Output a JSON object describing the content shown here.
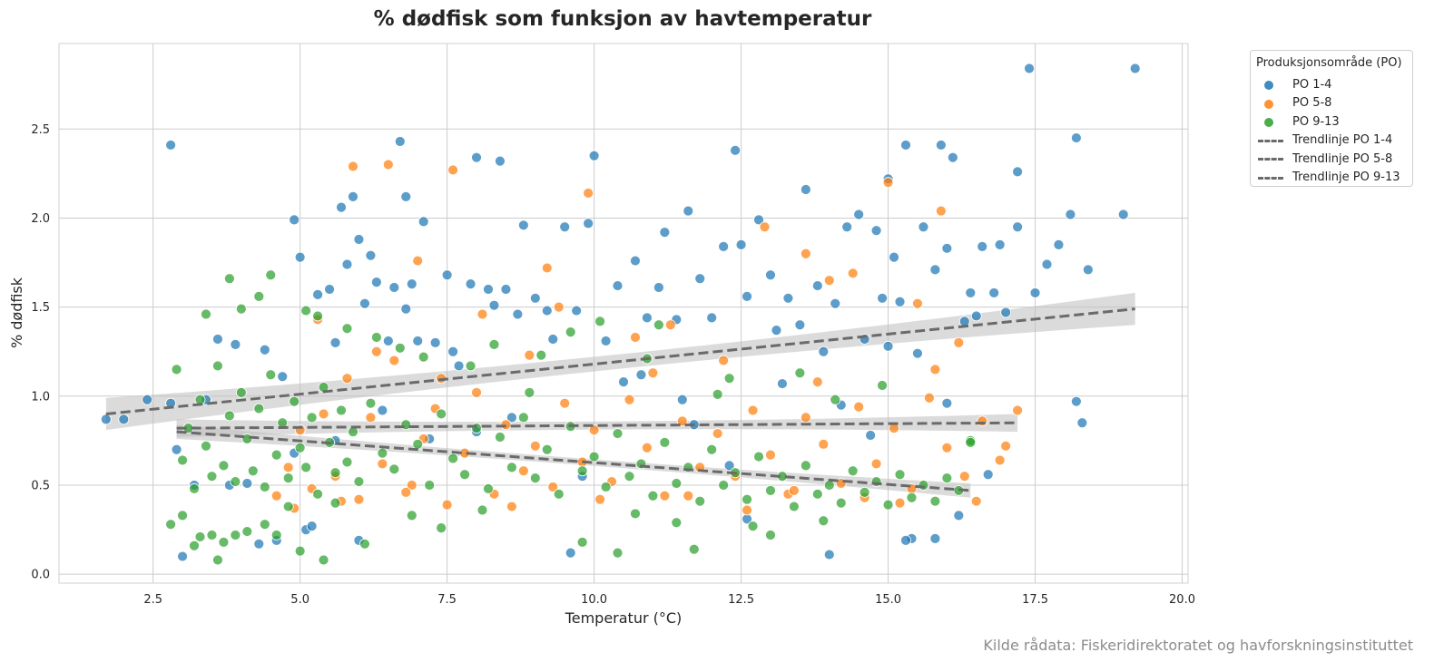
{
  "chart_data": {
    "type": "scatter",
    "title": "% dødfisk som funksjon av havtemperatur",
    "xlabel": "Temperatur (°C)",
    "ylabel": "% dødfisk",
    "xlim": [
      0.9,
      20.1
    ],
    "ylim": [
      -0.05,
      2.98
    ],
    "xticks": [
      2.5,
      5.0,
      7.5,
      10.0,
      12.5,
      15.0,
      17.5,
      20.0
    ],
    "xtick_labels": [
      "2.5",
      "5.0",
      "7.5",
      "10.0",
      "12.5",
      "15.0",
      "17.5",
      "20.0"
    ],
    "yticks": [
      0.0,
      0.5,
      1.0,
      1.5,
      2.0,
      2.5
    ],
    "ytick_labels": [
      "0.0",
      "0.5",
      "1.0",
      "1.5",
      "2.0",
      "2.5"
    ],
    "grid": true,
    "legend_title": "Produksjonsområde (PO)",
    "legend_position": "outside top-right",
    "series": [
      {
        "name": "PO 1-4",
        "color": "#1f77b4",
        "x": [
          1.7,
          2.0,
          2.4,
          2.8,
          2.9,
          3.2,
          3.4,
          3.6,
          3.8,
          3.9,
          4.1,
          4.4,
          4.6,
          4.7,
          4.9,
          5.0,
          5.1,
          5.3,
          5.5,
          5.6,
          5.7,
          5.8,
          5.9,
          6.0,
          6.1,
          6.2,
          6.3,
          6.5,
          6.6,
          6.7,
          6.8,
          6.9,
          7.0,
          7.1,
          7.3,
          7.5,
          7.6,
          7.7,
          7.9,
          8.0,
          8.2,
          8.3,
          8.4,
          8.5,
          8.7,
          8.8,
          9.0,
          9.2,
          9.3,
          9.5,
          9.7,
          9.9,
          10.0,
          10.2,
          10.4,
          10.5,
          10.7,
          10.9,
          11.1,
          11.2,
          11.4,
          11.6,
          11.8,
          12.0,
          12.2,
          12.4,
          12.5,
          12.6,
          12.8,
          13.0,
          13.1,
          13.3,
          13.5,
          13.6,
          13.8,
          13.9,
          14.1,
          14.3,
          14.5,
          14.6,
          14.8,
          14.9,
          15.0,
          15.1,
          15.2,
          15.3,
          15.5,
          15.6,
          15.8,
          15.9,
          16.0,
          16.1,
          16.3,
          16.4,
          16.5,
          16.6,
          16.8,
          16.9,
          17.0,
          17.2,
          17.4,
          17.5,
          17.7,
          17.9,
          18.1,
          18.2,
          18.3,
          18.4,
          19.0,
          19.2,
          16.2,
          15.4,
          5.2,
          6.0,
          4.3,
          9.6,
          12.6,
          14.0,
          15.8,
          3.0,
          2.8,
          6.8,
          8.0,
          11.7,
          17.2,
          18.2,
          15.3,
          16.0,
          4.9,
          5.6,
          6.4,
          7.2,
          8.6,
          9.8,
          10.8,
          11.5,
          12.3,
          13.2,
          14.2,
          14.7,
          15.0,
          16.7
        ],
        "y": [
          0.87,
          0.87,
          0.98,
          0.96,
          0.7,
          0.5,
          0.98,
          1.32,
          0.5,
          1.29,
          0.51,
          1.26,
          0.19,
          1.11,
          1.99,
          1.78,
          0.25,
          1.57,
          1.6,
          1.3,
          2.06,
          1.74,
          2.12,
          1.88,
          1.52,
          1.79,
          1.64,
          1.31,
          1.61,
          2.43,
          1.49,
          1.63,
          1.31,
          1.98,
          1.3,
          1.68,
          1.25,
          1.17,
          1.63,
          2.34,
          1.6,
          1.51,
          2.32,
          1.6,
          1.46,
          1.96,
          1.55,
          1.48,
          1.32,
          1.95,
          1.48,
          1.97,
          2.35,
          1.31,
          1.62,
          1.08,
          1.76,
          1.44,
          1.61,
          1.92,
          1.43,
          2.04,
          1.66,
          1.44,
          1.84,
          2.38,
          1.85,
          1.56,
          1.99,
          1.68,
          1.37,
          1.55,
          1.4,
          2.16,
          1.62,
          1.25,
          1.52,
          1.95,
          2.02,
          1.32,
          1.93,
          1.55,
          2.22,
          1.78,
          1.53,
          2.41,
          1.24,
          1.95,
          1.71,
          2.41,
          1.83,
          2.34,
          1.42,
          1.58,
          1.45,
          1.84,
          1.58,
          1.85,
          1.47,
          2.26,
          2.84,
          1.58,
          1.74,
          1.85,
          2.02,
          2.45,
          0.85,
          1.71,
          2.02,
          2.84,
          0.33,
          0.2,
          0.27,
          0.19,
          0.17,
          0.12,
          0.31,
          0.11,
          0.2,
          0.1,
          2.41,
          2.12,
          0.8,
          0.84,
          1.95,
          0.97,
          0.19,
          0.96,
          0.68,
          0.75,
          0.92,
          0.76,
          0.88,
          0.55,
          1.12,
          0.98,
          0.61,
          1.07,
          0.95,
          0.78,
          1.28,
          0.56
        ],
        "trend": {
          "x": [
            1.7,
            19.2
          ],
          "y": [
            0.9,
            1.49
          ],
          "ci": 0.09
        }
      },
      {
        "name": "PO 5-8",
        "color": "#ff7f0e",
        "x": [
          4.6,
          4.8,
          5.0,
          5.2,
          5.4,
          5.6,
          5.8,
          6.0,
          6.2,
          6.4,
          6.6,
          6.9,
          7.1,
          7.3,
          7.5,
          7.8,
          8.0,
          8.3,
          8.5,
          8.8,
          9.0,
          9.3,
          9.5,
          9.8,
          10.0,
          10.3,
          10.6,
          10.9,
          11.2,
          11.5,
          11.8,
          12.1,
          12.4,
          12.7,
          13.0,
          13.3,
          13.6,
          13.9,
          14.2,
          14.5,
          14.8,
          15.1,
          15.4,
          15.7,
          16.0,
          16.3,
          16.6,
          16.9,
          17.2,
          5.9,
          6.5,
          7.6,
          9.2,
          9.9,
          13.6,
          14.4,
          15.0,
          15.9,
          5.3,
          6.3,
          7.0,
          8.1,
          9.4,
          10.7,
          11.3,
          12.9,
          14.0,
          15.5,
          16.2,
          4.9,
          5.7,
          6.8,
          8.6,
          10.1,
          11.6,
          12.6,
          13.4,
          14.6,
          15.2,
          16.5,
          7.4,
          8.9,
          11.0,
          12.2,
          13.8,
          15.8,
          17.0
        ],
        "y": [
          0.44,
          0.6,
          0.81,
          0.48,
          0.9,
          0.55,
          1.1,
          0.42,
          0.88,
          0.62,
          1.2,
          0.5,
          0.76,
          0.93,
          0.39,
          0.68,
          1.02,
          0.45,
          0.84,
          0.58,
          0.72,
          0.49,
          0.96,
          0.63,
          0.81,
          0.52,
          0.98,
          0.71,
          0.44,
          0.86,
          0.6,
          0.79,
          0.55,
          0.92,
          0.67,
          0.45,
          0.88,
          0.73,
          0.51,
          0.94,
          0.62,
          0.82,
          0.48,
          0.99,
          0.71,
          0.55,
          0.86,
          0.64,
          0.92,
          2.29,
          2.3,
          2.27,
          1.72,
          2.14,
          1.8,
          1.69,
          2.2,
          2.04,
          1.43,
          1.25,
          1.76,
          1.46,
          1.5,
          1.33,
          1.4,
          1.95,
          1.65,
          1.52,
          1.3,
          0.37,
          0.41,
          0.46,
          0.38,
          0.42,
          0.44,
          0.36,
          0.47,
          0.43,
          0.4,
          0.41,
          1.1,
          1.23,
          1.13,
          1.2,
          1.08,
          1.15,
          0.72
        ],
        "trend": {
          "x": [
            2.9,
            17.2
          ],
          "y": [
            0.82,
            0.85
          ],
          "ci": 0.05
        }
      },
      {
        "name": "PO 9-13",
        "color": "#2ca02c",
        "x": [
          2.8,
          2.9,
          3.0,
          3.1,
          3.2,
          3.3,
          3.4,
          3.5,
          3.6,
          3.7,
          3.8,
          3.9,
          4.0,
          4.1,
          4.2,
          4.3,
          4.4,
          4.5,
          4.6,
          4.7,
          4.8,
          4.9,
          5.0,
          5.1,
          5.2,
          5.3,
          5.4,
          5.5,
          5.6,
          5.7,
          5.8,
          5.9,
          6.0,
          6.2,
          6.4,
          6.6,
          6.8,
          7.0,
          7.2,
          7.4,
          7.6,
          7.8,
          8.0,
          8.2,
          8.4,
          8.6,
          8.8,
          9.0,
          9.2,
          9.4,
          9.6,
          9.8,
          10.0,
          10.2,
          10.4,
          10.6,
          10.8,
          11.0,
          11.2,
          11.4,
          11.6,
          11.8,
          12.0,
          12.2,
          12.4,
          12.6,
          12.8,
          13.0,
          13.2,
          13.4,
          13.6,
          13.8,
          14.0,
          14.2,
          14.4,
          14.6,
          14.8,
          15.0,
          15.2,
          15.4,
          15.6,
          15.8,
          16.0,
          16.2,
          16.4,
          3.3,
          3.5,
          3.7,
          3.9,
          4.4,
          4.6,
          5.0,
          5.4,
          3.6,
          3.2,
          4.1,
          6.1,
          7.4,
          9.8,
          10.4,
          11.7,
          13.0,
          3.8,
          4.0,
          4.5,
          5.1,
          5.8,
          6.7,
          7.1,
          8.3,
          9.1,
          10.1,
          11.1,
          12.3,
          13.5,
          14.9,
          3.4,
          4.3,
          5.3,
          6.3,
          7.9,
          8.9,
          9.6,
          10.9,
          12.1,
          14.1,
          16.4,
          3.0,
          4.8,
          5.6,
          6.9,
          8.1,
          10.7,
          11.4,
          12.7,
          13.9
        ],
        "y": [
          0.28,
          1.15,
          0.64,
          0.82,
          0.48,
          0.98,
          0.72,
          0.55,
          1.17,
          0.61,
          0.89,
          0.52,
          1.02,
          0.76,
          0.58,
          0.93,
          0.49,
          1.12,
          0.67,
          0.85,
          0.54,
          0.97,
          0.71,
          0.6,
          0.88,
          0.45,
          1.05,
          0.74,
          0.57,
          0.92,
          0.63,
          0.8,
          0.52,
          0.96,
          0.68,
          0.59,
          0.84,
          0.73,
          0.5,
          0.9,
          0.65,
          0.56,
          0.82,
          0.48,
          0.77,
          0.6,
          0.88,
          0.54,
          0.7,
          0.45,
          0.83,
          0.58,
          0.66,
          0.49,
          0.79,
          0.55,
          0.62,
          0.44,
          0.74,
          0.51,
          0.6,
          0.41,
          0.7,
          0.5,
          0.57,
          0.42,
          0.66,
          0.47,
          0.55,
          0.38,
          0.61,
          0.45,
          0.5,
          0.4,
          0.58,
          0.46,
          0.52,
          0.39,
          0.56,
          0.43,
          0.5,
          0.41,
          0.54,
          0.47,
          0.75,
          0.21,
          0.22,
          0.18,
          0.22,
          0.28,
          0.22,
          0.13,
          0.08,
          0.08,
          0.16,
          0.24,
          0.17,
          0.26,
          0.18,
          0.12,
          0.14,
          0.22,
          1.66,
          1.49,
          1.68,
          1.48,
          1.38,
          1.27,
          1.22,
          1.29,
          1.23,
          1.42,
          1.4,
          1.1,
          1.13,
          1.06,
          1.46,
          1.56,
          1.45,
          1.33,
          1.17,
          1.02,
          1.36,
          1.21,
          1.01,
          0.98,
          0.74,
          0.33,
          0.38,
          0.4,
          0.33,
          0.36,
          0.34,
          0.29,
          0.27,
          0.3
        ],
        "trend": {
          "x": [
            2.9,
            16.4
          ],
          "y": [
            0.8,
            0.47
          ],
          "ci": 0.04
        }
      }
    ],
    "trend_legend": [
      "Trendlinje PO 1-4",
      "Trendlinje PO 5-8",
      "Trendlinje PO 9-13"
    ],
    "trend_color": "#6a6a6a",
    "ci_color": "#bdbdbd"
  },
  "source_note": "Kilde rådata: Fiskeridirektoratet og havforskningsinstituttet"
}
